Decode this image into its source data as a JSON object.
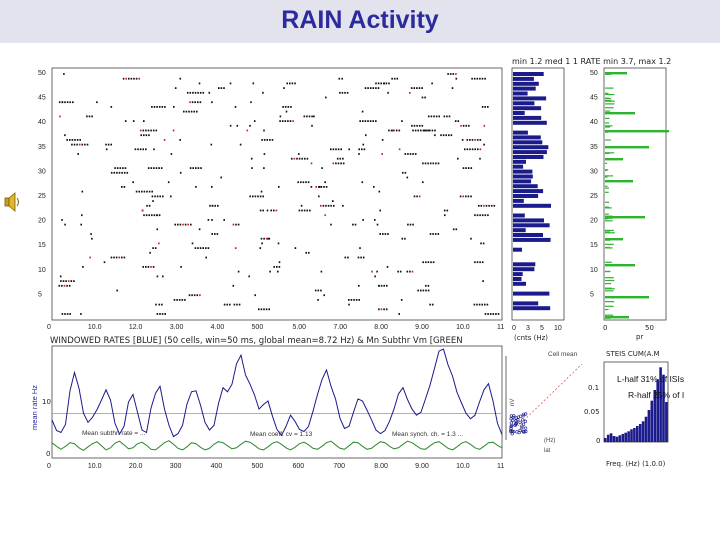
{
  "slide": {
    "title": "RAIN Activity"
  },
  "raster": {
    "y_ticks": [
      "50",
      "45",
      "40",
      "35",
      "30",
      "25",
      "20",
      "15",
      "10",
      "5"
    ],
    "x_ticks": [
      "0",
      "10.0",
      "12.0",
      "3.00",
      "4.00",
      "500",
      "5.00",
      "7.00",
      "8.00",
      "9.00",
      "10.0",
      "11"
    ]
  },
  "rate_hist": {
    "header": "min 1.2 med 1 1 RATE min 3.7, max 1.2",
    "y_ticks": [
      "50",
      "45",
      "40",
      "35",
      "30",
      "25",
      "20",
      "15",
      "10",
      "5"
    ],
    "x_ticks": [
      "0",
      "3",
      "5",
      "10"
    ],
    "xlabel": "(cnts (Hz)"
  },
  "vm_hist": {
    "x_ticks": [
      "0",
      "50"
    ],
    "xlabel": "pr"
  },
  "windowed": {
    "title": "WINDOWED RATES [BLUE] (50 cells, win=50 ms, global mean=8.72 Hz) & Mn Subthr Vm [GREEN",
    "ylabel": "mean rate Hz",
    "y_ticks": [
      "10",
      "0"
    ],
    "x_ticks": [
      "0",
      "10.0",
      "20.0",
      "300",
      "400",
      "500",
      "600",
      "700",
      "8.00",
      "9.00",
      "10.0",
      "11"
    ],
    "annotations": [
      "Mean subthr. rate = ...",
      "Mean coeff. cv = 1.13",
      "Mean synch. ch. = 1.3 ..."
    ],
    "chart_data": {
      "type": "line",
      "xlabel": "",
      "ylabel": "mean rate Hz",
      "xlim": [
        0,
        11
      ],
      "ylim": [
        0,
        22
      ],
      "hlines": [
        {
          "y": 8.72,
          "color": "#5fb9e6"
        }
      ],
      "series": [
        {
          "color": "#1b1b8c",
          "values": [
            7.5,
            5.4,
            5,
            6.6,
            13.2,
            16.8,
            13.7,
            8.8,
            7,
            8,
            9.5,
            11.4,
            13.4,
            11.4,
            6.8,
            4.7,
            6.2,
            11,
            12.5,
            9,
            5.5,
            5,
            9.8,
            12.7,
            14.1,
            9.6,
            6.4,
            4.2,
            4.8,
            6.4,
            10.6,
            13,
            13.2,
            10.4,
            7,
            5.5,
            6.4,
            10.7,
            13.8,
            13,
            14.5,
            18.5,
            20.2,
            16.3,
            14.5,
            12.4,
            9.6,
            10.5,
            11.2,
            8.2,
            5.6,
            4.4,
            6.2,
            8.4,
            7.2,
            5.6,
            5.2,
            6.2,
            9.2,
            12.5,
            15.4,
            17.3,
            14.1,
            11.6,
            7.8,
            5.8,
            6.2,
            9,
            11.6,
            11.2,
            9.4,
            7.5,
            5.5,
            4.8,
            5.4,
            7.2,
            9.6,
            12.6,
            13.8,
            11.5,
            9.6,
            8.4,
            9,
            11.6,
            14.3,
            17.6,
            21,
            21.4,
            18.3,
            16.1,
            12.9,
            10.8,
            8.8,
            7.7,
            8.4,
            11,
            13.4,
            14.6,
            11.2,
            6.8,
            4.6
          ]
        },
        {
          "color": "#2f8a2f",
          "values": [
            3,
            2.3,
            1.7,
            2.3,
            3,
            2.8,
            2,
            1.5,
            2.2,
            2.8,
            3.2,
            2.4,
            1.6,
            2,
            2.9,
            3.3,
            2.6,
            1.8,
            2,
            2.8,
            3.1,
            2.5,
            1.7,
            1.6,
            2.3,
            3,
            3.4,
            2.7,
            1.9,
            1.6,
            2.2,
            3,
            2.8,
            2.1,
            1.6,
            1.9,
            2.7,
            3.2,
            3,
            2.4,
            1.8,
            2,
            2.7,
            3.3,
            3.1,
            2.5,
            1.8,
            1.6,
            2.2,
            2.9,
            3.2,
            2.7,
            2,
            1.6,
            2.1,
            2.8,
            3.1,
            2.6,
            1.9,
            1.7,
            2.3,
            3,
            3.3,
            2.6,
            1.9,
            1.7,
            2.4,
            3.1,
            3,
            2.3,
            1.7,
            1.9,
            2.6,
            3.2,
            3,
            2.3,
            1.8,
            2,
            2.7,
            3.3,
            3,
            2.4,
            1.8,
            1.7,
            2.4,
            3,
            3.2,
            2.6,
            1.9,
            1.6,
            2.2,
            2.9,
            3.2,
            2.7,
            2,
            1.7,
            2.3,
            3,
            3.1,
            2.5,
            2
          ]
        }
      ]
    }
  },
  "scatter_panel": {
    "labels": [
      "Cell mean",
      "nV",
      "(Hz)",
      "lat"
    ]
  },
  "isi": {
    "title": "STEIS CUM(A.M",
    "left_note": "L-half 31% of ISIs",
    "right_note": "R-half 25% of I",
    "y_ticks": [
      "0.1",
      "0.05",
      "0"
    ],
    "xlabel": "Freq. (Hz) (1.0.0)",
    "chart_data": {
      "type": "bar",
      "values": [
        0.006,
        0.011,
        0.013,
        0.009,
        0.008,
        0.01,
        0.012,
        0.014,
        0.016,
        0.019,
        0.021,
        0.024,
        0.027,
        0.031,
        0.038,
        0.048,
        0.062,
        0.078,
        0.094,
        0.112,
        0.101,
        0.06
      ],
      "ylim": [
        0,
        0.12
      ]
    }
  }
}
